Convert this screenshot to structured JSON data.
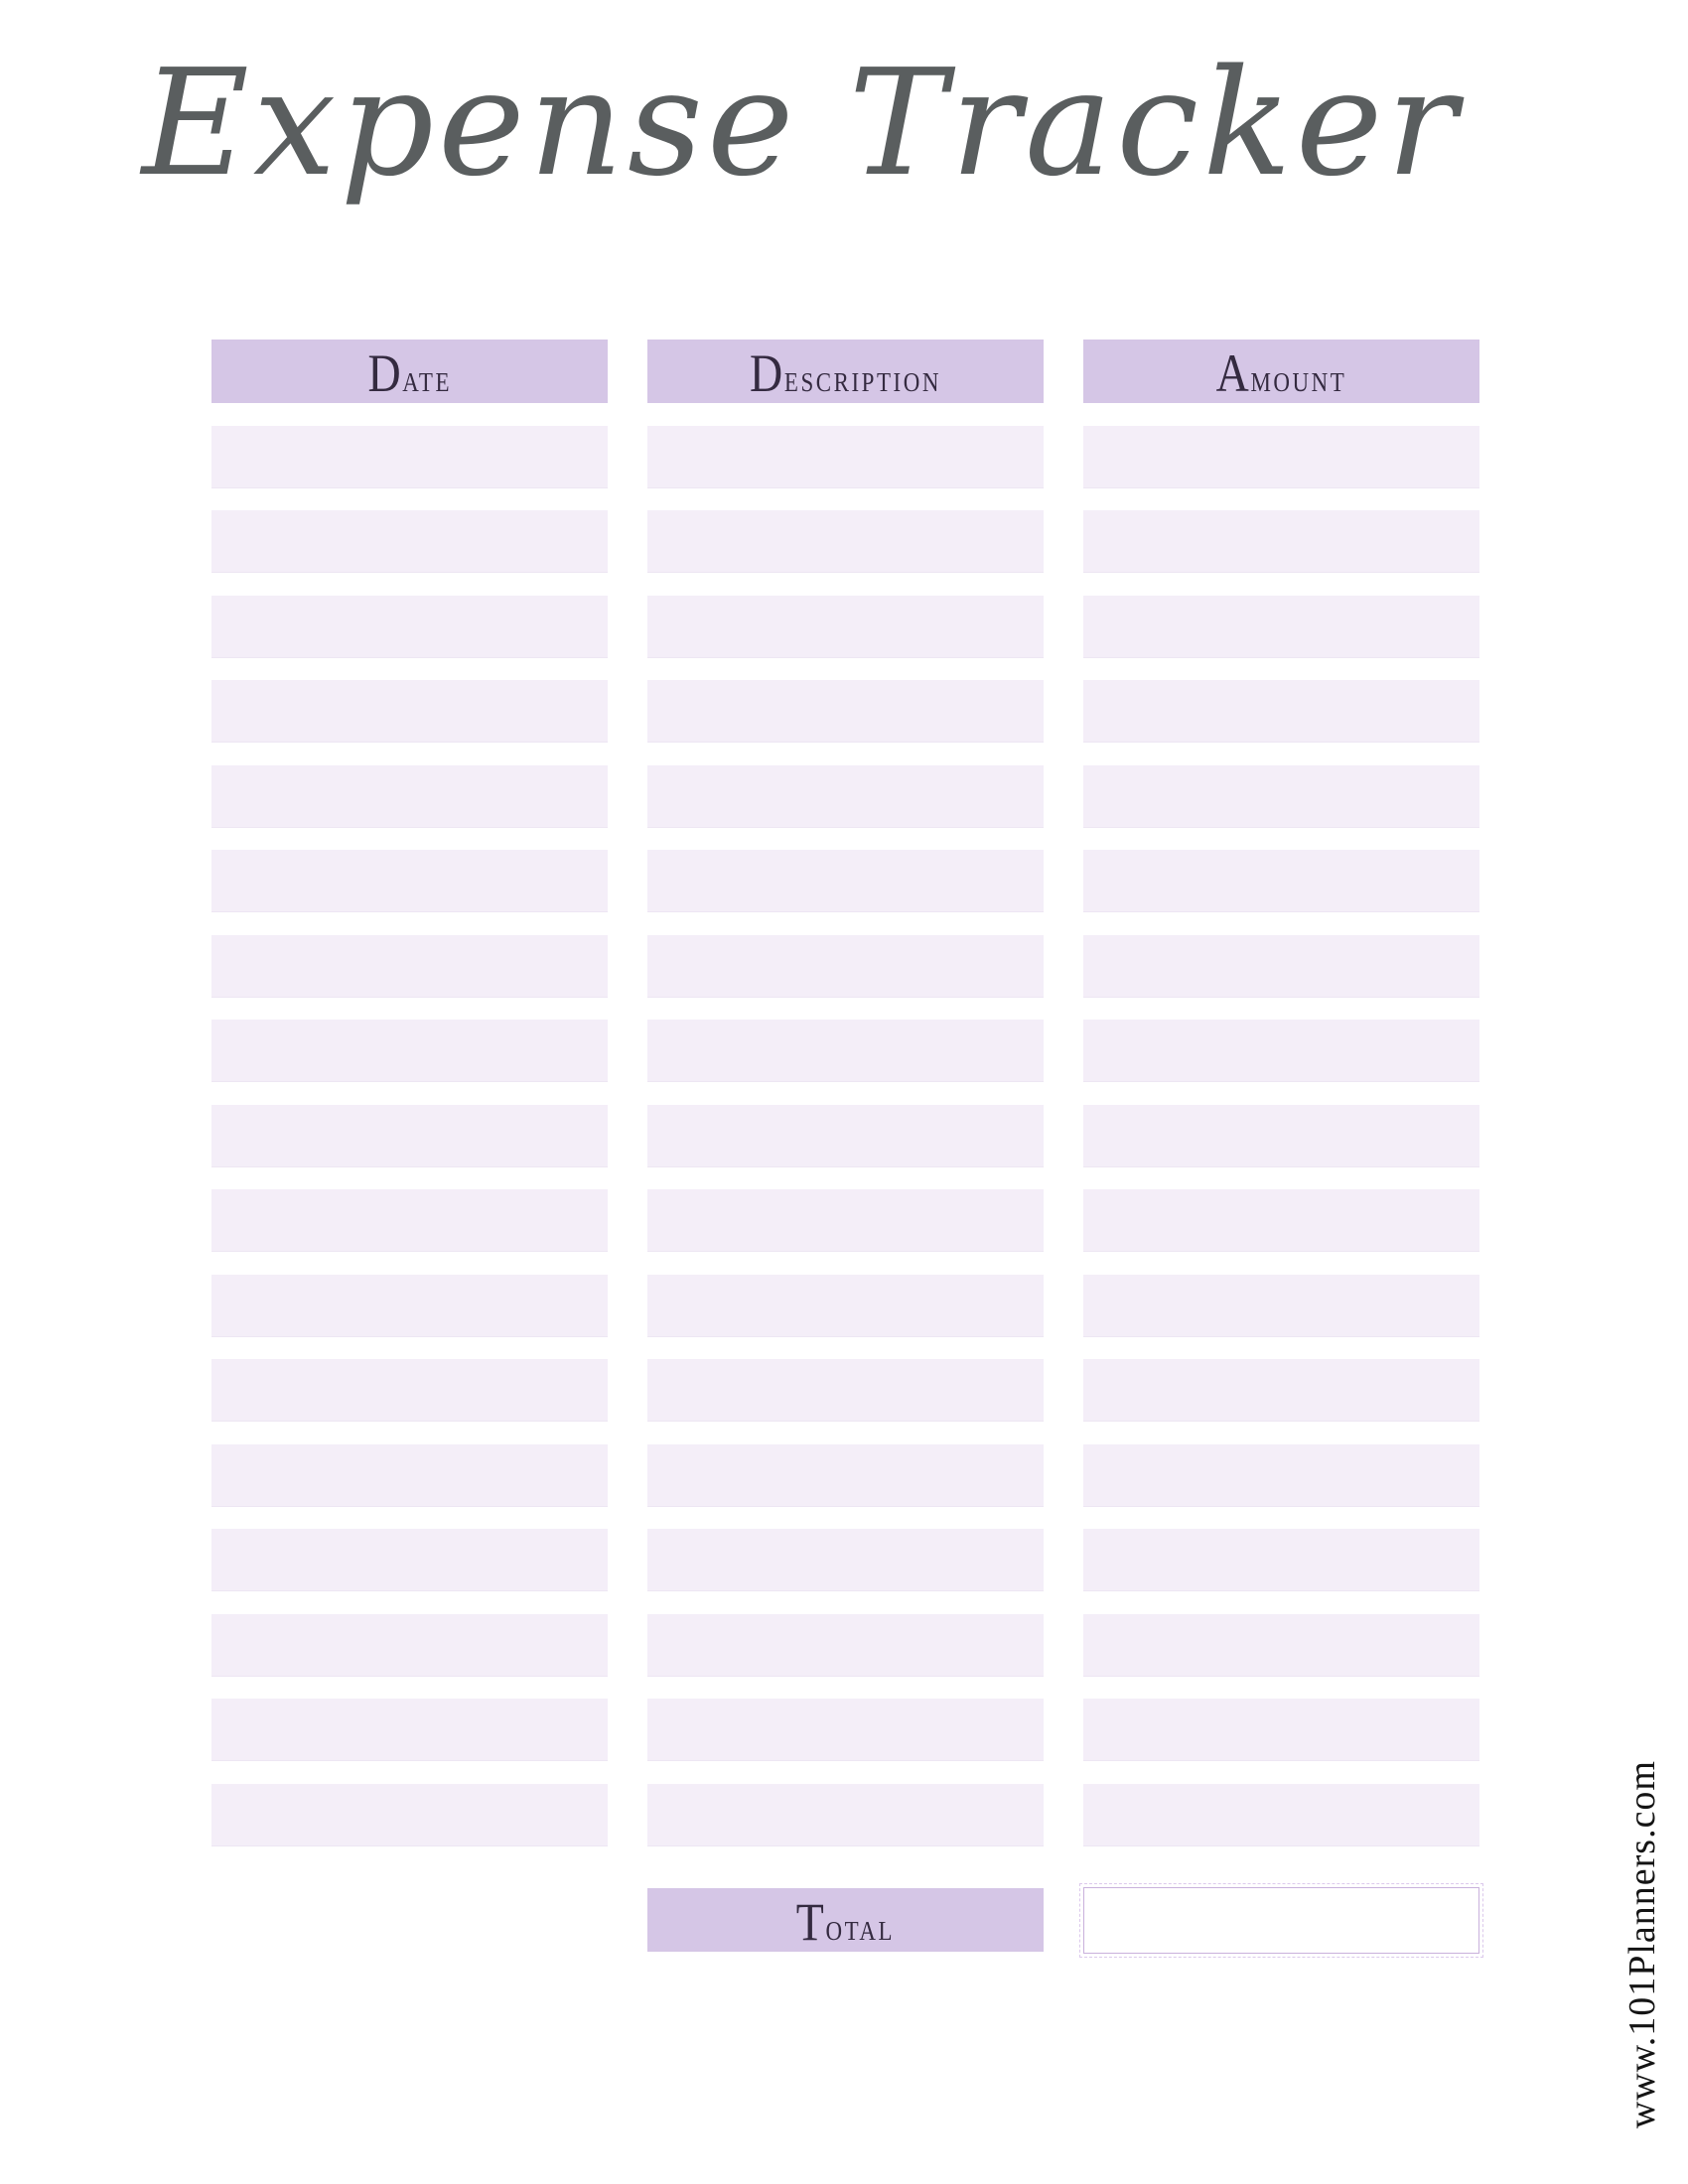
{
  "page": {
    "title": "Expense Tracker",
    "watermark": "www.101Planners.com"
  },
  "colors": {
    "header_bg": "#d5c6e6",
    "row_bg": "#f4eef8",
    "title_color": "#5a5e5f",
    "header_text": "#342a40",
    "total_box_border": "#c9b1dc",
    "watermark_color": "#141414",
    "page_bg": "#ffffff"
  },
  "table": {
    "columns": [
      {
        "label": "Date"
      },
      {
        "label": "Description"
      },
      {
        "label": "Amount"
      }
    ],
    "rows": [
      {
        "date": "",
        "description": "",
        "amount": ""
      },
      {
        "date": "",
        "description": "",
        "amount": ""
      },
      {
        "date": "",
        "description": "",
        "amount": ""
      },
      {
        "date": "",
        "description": "",
        "amount": ""
      },
      {
        "date": "",
        "description": "",
        "amount": ""
      },
      {
        "date": "",
        "description": "",
        "amount": ""
      },
      {
        "date": "",
        "description": "",
        "amount": ""
      },
      {
        "date": "",
        "description": "",
        "amount": ""
      },
      {
        "date": "",
        "description": "",
        "amount": ""
      },
      {
        "date": "",
        "description": "",
        "amount": ""
      },
      {
        "date": "",
        "description": "",
        "amount": ""
      },
      {
        "date": "",
        "description": "",
        "amount": ""
      },
      {
        "date": "",
        "description": "",
        "amount": ""
      },
      {
        "date": "",
        "description": "",
        "amount": ""
      },
      {
        "date": "",
        "description": "",
        "amount": ""
      },
      {
        "date": "",
        "description": "",
        "amount": ""
      },
      {
        "date": "",
        "description": "",
        "amount": ""
      }
    ],
    "footer": {
      "total_label": "Total",
      "total_value": ""
    }
  }
}
